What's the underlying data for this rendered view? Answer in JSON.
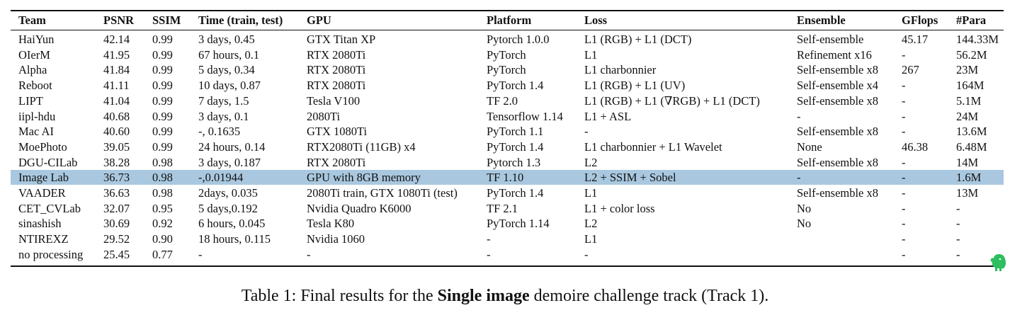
{
  "table": {
    "headers": [
      "Team",
      "PSNR",
      "SSIM",
      "Time (train, test)",
      "GPU",
      "Platform",
      "Loss",
      "Ensemble",
      "GFlops",
      "#Para"
    ],
    "rows": [
      {
        "cells": [
          "HaiYun",
          "42.14",
          "0.99",
          "3 days, 0.45",
          "GTX Titan XP",
          "Pytorch 1.0.0",
          "L1 (RGB) + L1 (DCT)",
          "Self-ensemble",
          "45.17",
          "144.33M"
        ],
        "highlighted": false
      },
      {
        "cells": [
          "OIerM",
          "41.95",
          "0.99",
          "67 hours, 0.1",
          "RTX 2080Ti",
          "PyTorch",
          "L1",
          "Refinement x16",
          "-",
          "56.2M"
        ],
        "highlighted": false
      },
      {
        "cells": [
          "Alpha",
          "41.84",
          "0.99",
          "5 days, 0.34",
          "RTX 2080Ti",
          "PyTorch",
          "L1 charbonnier",
          "Self-ensemble x8",
          "267",
          "23M"
        ],
        "highlighted": false
      },
      {
        "cells": [
          "Reboot",
          "41.11",
          "0.99",
          "10 days, 0.87",
          "RTX 2080Ti",
          "PyTorch 1.4",
          "L1 (RGB) + L1 (UV)",
          "Self-ensemble x4",
          "-",
          "164M"
        ],
        "highlighted": false
      },
      {
        "cells": [
          "LIPT",
          "41.04",
          "0.99",
          "7 days, 1.5",
          "Tesla V100",
          "TF 2.0",
          "L1 (RGB) + L1 (∇RGB) + L1 (DCT)",
          "Self-ensemble x8",
          "-",
          "5.1M"
        ],
        "highlighted": false
      },
      {
        "cells": [
          "iipl-hdu",
          "40.68",
          "0.99",
          "3 days, 0.1",
          "2080Ti",
          "Tensorflow 1.14",
          "L1 + ASL",
          "-",
          "-",
          "24M"
        ],
        "highlighted": false
      },
      {
        "cells": [
          "Mac AI",
          "40.60",
          "0.99",
          "-, 0.1635",
          "GTX 1080Ti",
          "PyTorch 1.1",
          "-",
          "Self-ensemble x8",
          "-",
          "13.6M"
        ],
        "highlighted": false
      },
      {
        "cells": [
          "MoePhoto",
          "39.05",
          "0.99",
          "24 hours, 0.14",
          "RTX2080Ti (11GB) x4",
          "PyTorch 1.4",
          "L1 charbonnier + L1 Wavelet",
          "None",
          "46.38",
          "6.48M"
        ],
        "highlighted": false
      },
      {
        "cells": [
          "DGU-CILab",
          "38.28",
          "0.98",
          "3 days, 0.187",
          "RTX 2080Ti",
          "Pytorch 1.3",
          "L2",
          "Self-ensemble x8",
          "-",
          "14M"
        ],
        "highlighted": false
      },
      {
        "cells": [
          "Image Lab",
          "36.73",
          "0.98",
          "-,0.01944",
          "GPU with 8GB memory",
          "TF 1.10",
          "L2 + SSIM + Sobel",
          "-",
          "-",
          "1.6M"
        ],
        "highlighted": true
      },
      {
        "cells": [
          "VAADER",
          "36.63",
          "0.98",
          "2days, 0.035",
          "2080Ti train, GTX 1080Ti (test)",
          "PyTorch 1.4",
          "L1",
          "Self-ensemble x8",
          "-",
          "13M"
        ],
        "highlighted": false
      },
      {
        "cells": [
          "CET_CVLab",
          "32.07",
          "0.95",
          "5 days,0.192",
          "Nvidia Quadro K6000",
          "TF 2.1",
          "L1 + color loss",
          "No",
          "-",
          "-"
        ],
        "highlighted": false
      },
      {
        "cells": [
          "sinashish",
          "30.69",
          "0.92",
          "6 hours, 0.045",
          "Tesla K80",
          "PyTorch 1.14",
          "L2",
          "No",
          "-",
          "-"
        ],
        "highlighted": false
      },
      {
        "cells": [
          "NTIREXZ",
          "29.52",
          "0.90",
          "18 hours, 0.115",
          "Nvidia 1060",
          "-",
          "L1",
          "",
          "-",
          "-"
        ],
        "highlighted": false
      },
      {
        "cells": [
          "no processing",
          "25.45",
          "0.77",
          "-",
          "-",
          "-",
          "-",
          "",
          "-",
          "-"
        ],
        "highlighted": false
      }
    ],
    "highlight_color": "#a9c8df"
  },
  "caption": {
    "prefix": "Table 1: Final results for the ",
    "bold": "Single image",
    "suffix": " demoire challenge track (Track 1)."
  },
  "icons": {
    "corner_icon": "evernote-elephant-icon",
    "corner_icon_color": "#2dbe60"
  }
}
